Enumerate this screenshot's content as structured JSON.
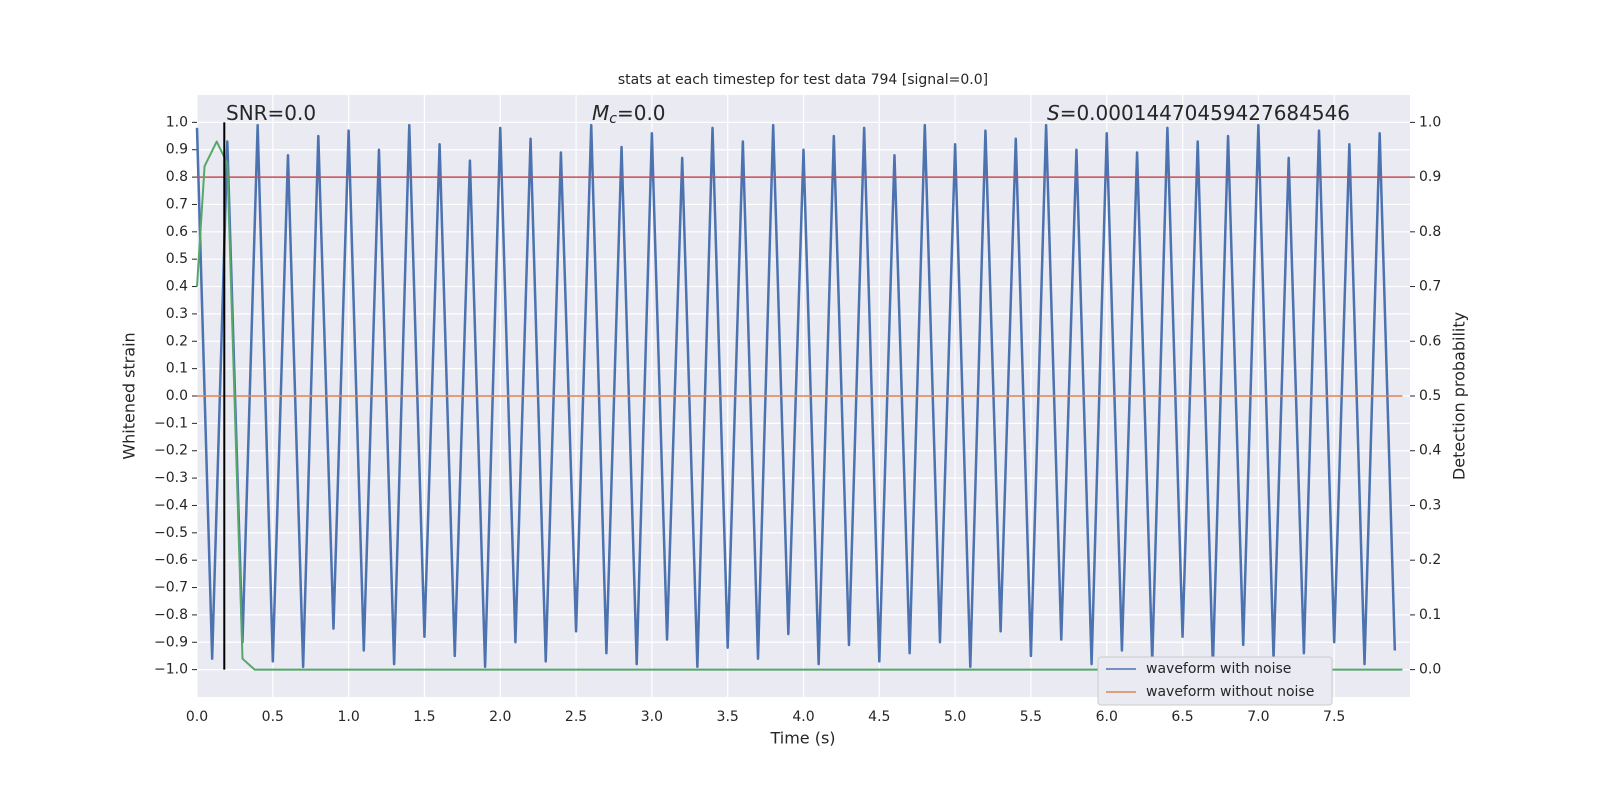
{
  "chart_data": {
    "type": "line",
    "title": "stats at each timestep for test data 794 [signal=0.0]",
    "xlabel": "Time (s)",
    "ylabel": "Whitened strain",
    "y2label": "Detection probability",
    "annotations": [
      {
        "text": "SNR=0.0"
      },
      {
        "symbol": "M",
        "sub": "c",
        "text": "=0.0"
      },
      {
        "symbol": "S",
        "text": "=0.00014470459427684546"
      }
    ],
    "x": [
      0,
      0.1,
      0.2,
      0.3,
      0.4,
      0.5,
      0.6,
      0.7,
      0.8,
      0.9,
      1,
      1.1,
      1.2,
      1.3,
      1.4,
      1.5,
      1.6,
      1.7,
      1.8,
      1.9,
      2,
      2.1,
      2.2,
      2.3,
      2.4,
      2.5,
      2.6,
      2.7,
      2.8,
      2.9,
      3,
      3.1,
      3.2,
      3.3,
      3.4,
      3.5,
      3.6,
      3.7,
      3.8,
      3.9,
      4,
      4.1,
      4.2,
      4.3,
      4.4,
      4.5,
      4.6,
      4.7,
      4.8,
      4.9,
      5,
      5.1,
      5.2,
      5.3,
      5.4,
      5.5,
      5.6,
      5.7,
      5.8,
      5.9,
      6,
      6.1,
      6.2,
      6.3,
      6.4,
      6.5,
      6.6,
      6.7,
      6.8,
      6.9,
      7,
      7.1,
      7.2,
      7.3,
      7.4,
      7.5,
      7.6,
      7.7,
      7.8,
      7.9
    ],
    "series": [
      {
        "name": "waveform with noise",
        "color": "#4c72b0",
        "values": [
          0.98,
          -0.96,
          0.93,
          -0.9,
          0.99,
          -0.97,
          0.88,
          -0.99,
          0.95,
          -0.85,
          0.97,
          -0.93,
          0.9,
          -0.98,
          0.99,
          -0.88,
          0.92,
          -0.95,
          0.86,
          -0.99,
          0.98,
          -0.9,
          0.94,
          -0.97,
          0.89,
          -0.86,
          0.99,
          -0.94,
          0.91,
          -0.98,
          0.96,
          -0.89,
          0.87,
          -0.99,
          0.98,
          -0.92,
          0.93,
          -0.96,
          0.99,
          -0.87,
          0.9,
          -0.98,
          0.95,
          -0.91,
          0.98,
          -0.97,
          0.88,
          -0.94,
          0.99,
          -0.9,
          0.92,
          -0.99,
          0.97,
          -0.86,
          0.94,
          -0.95,
          0.99,
          -0.89,
          0.9,
          -0.98,
          0.96,
          -0.93,
          0.89,
          -0.97,
          0.98,
          -0.88,
          0.93,
          -0.99,
          0.95,
          -0.91,
          0.99,
          -0.96,
          0.87,
          -0.94,
          0.97,
          -0.9,
          0.92,
          -0.98,
          0.96,
          -0.93
        ]
      },
      {
        "name": "waveform without noise",
        "color": "#dd8452",
        "x": [
          0,
          7.95
        ],
        "values": [
          0,
          0
        ]
      }
    ],
    "probability": {
      "color": "#55a868",
      "axis": "y2",
      "x": [
        0,
        0.05,
        0.13,
        0.2,
        0.3,
        0.38,
        7.95
      ],
      "values": [
        0.7,
        0.92,
        0.965,
        0.925,
        0.02,
        0,
        0
      ]
    },
    "threshold": {
      "value": 0.9,
      "axis": "y2",
      "color": "#c44e52"
    },
    "marker_x": 0.18,
    "xlim": [
      0,
      8
    ],
    "ylim": [
      -1.1,
      1.1
    ],
    "y2lim": [
      -0.05,
      1.05
    ],
    "xticks": [
      {
        "value": 0,
        "label": "0.0"
      },
      0.5,
      {
        "value": 1,
        "label": "1.0"
      },
      1.5,
      {
        "value": 2,
        "label": "2.0"
      },
      2.5,
      {
        "value": 3,
        "label": "3.0"
      },
      3.5,
      {
        "value": 4,
        "label": "4.0"
      },
      4.5,
      {
        "value": 5,
        "label": "5.0"
      },
      5.5,
      {
        "value": 6,
        "label": "6.0"
      },
      6.5,
      {
        "value": 7,
        "label": "7.0"
      },
      7.5
    ],
    "yticks": [
      {
        "value": -1,
        "label": "−1.0"
      },
      {
        "value": -0.9,
        "label": "−0.9"
      },
      {
        "value": -0.8,
        "label": "−0.8"
      },
      {
        "value": -0.7,
        "label": "−0.7"
      },
      {
        "value": -0.6,
        "label": "−0.6"
      },
      {
        "value": -0.5,
        "label": "−0.5"
      },
      {
        "value": -0.4,
        "label": "−0.4"
      },
      {
        "value": -0.3,
        "label": "−0.3"
      },
      {
        "value": -0.2,
        "label": "−0.2"
      },
      {
        "value": -0.1,
        "label": "−0.1"
      },
      {
        "value": 0,
        "label": "0.0"
      },
      0.1,
      0.2,
      0.3,
      0.4,
      0.5,
      0.6,
      0.7,
      0.8,
      0.9,
      {
        "value": 1,
        "label": "1.0"
      }
    ],
    "y2ticks": [
      {
        "value": 0,
        "label": "0.0"
      },
      0.1,
      0.2,
      0.3,
      0.4,
      0.5,
      0.6,
      0.7,
      0.8,
      0.9,
      {
        "value": 1,
        "label": "1.0"
      }
    ],
    "grid": true,
    "legend": "lower right"
  }
}
